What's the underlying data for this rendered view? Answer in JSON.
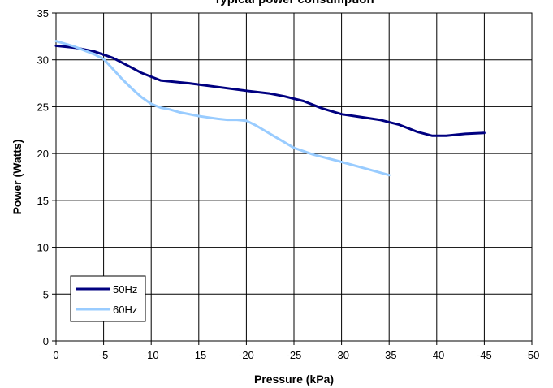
{
  "chart_data": {
    "type": "line",
    "title": "Typical power consumption",
    "xlabel": "Pressure (kPa)",
    "ylabel": "Power (Watts)",
    "xlim": [
      0,
      -50
    ],
    "ylim": [
      0,
      35
    ],
    "x_ticks": [
      "0",
      "-5",
      "-10",
      "-15",
      "-20",
      "-25",
      "-30",
      "-35",
      "-40",
      "-45",
      "-50"
    ],
    "y_ticks": [
      "0",
      "5",
      "10",
      "15",
      "20",
      "25",
      "30",
      "35"
    ],
    "grid": true,
    "legend_position": "bottom-left",
    "series": [
      {
        "name": "50Hz",
        "color": "#000080",
        "x": [
          0,
          -2,
          -4,
          -6,
          -7.5,
          -9,
          -11,
          -14,
          -17,
          -20,
          -22.5,
          -24,
          -26,
          -28,
          -30,
          -32,
          -34,
          -36,
          -38,
          -39.5,
          -41,
          -43,
          -45
        ],
        "y": [
          31.5,
          31.3,
          30.9,
          30.2,
          29.4,
          28.6,
          27.8,
          27.5,
          27.1,
          26.7,
          26.4,
          26.1,
          25.6,
          24.8,
          24.2,
          23.9,
          23.6,
          23.1,
          22.3,
          21.9,
          21.9,
          22.1,
          22.2
        ]
      },
      {
        "name": "60Hz",
        "color": "#99ccff",
        "x": [
          0,
          -2,
          -4,
          -5,
          -6,
          -7,
          -8,
          -9,
          -10,
          -11,
          -12,
          -13,
          -15,
          -17,
          -18,
          -19,
          -20,
          -21,
          -23,
          -25,
          -27,
          -30,
          -32.5,
          -35
        ],
        "y": [
          32,
          31.4,
          30.6,
          30.1,
          29,
          27.9,
          26.9,
          26,
          25.3,
          24.9,
          24.7,
          24.4,
          24,
          23.7,
          23.6,
          23.6,
          23.5,
          23,
          21.8,
          20.6,
          19.9,
          19.1,
          18.4,
          17.7
        ]
      }
    ]
  }
}
